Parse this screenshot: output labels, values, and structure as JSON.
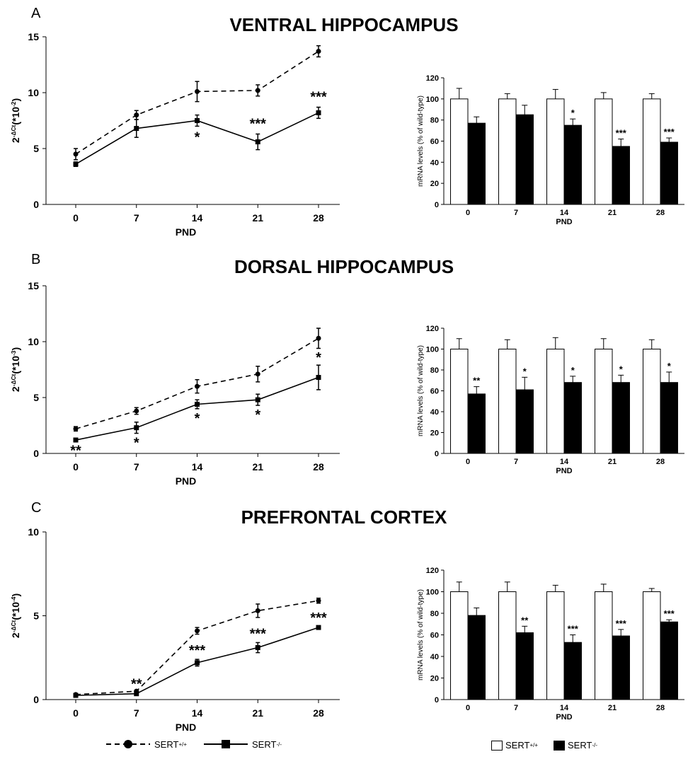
{
  "panels": [
    {
      "letter": "A",
      "title": "VENTRAL HIPPOCAMPUS"
    },
    {
      "letter": "B",
      "title": "DORSAL HIPPOCAMPUS"
    },
    {
      "letter": "C",
      "title": "PREFRONTAL CORTEX"
    }
  ],
  "legend": {
    "wt_label": "SERT",
    "wt_sup": "+/+",
    "ko_label": "SERT",
    "ko_sup": "-/-"
  },
  "chart_data": [
    {
      "type": "line",
      "panel": "A",
      "ylabel": "2-ΔCt(*10-2)",
      "xlabel": "PND",
      "x": [
        0,
        7,
        14,
        21,
        28
      ],
      "ylim": [
        0,
        15
      ],
      "yticks": [
        0,
        5,
        10,
        15
      ],
      "series": [
        {
          "name": "SERT+/+",
          "style": "dashed",
          "values": [
            4.5,
            8.0,
            10.1,
            10.2,
            13.7
          ],
          "errors": [
            0.5,
            0.4,
            0.9,
            0.5,
            0.5
          ]
        },
        {
          "name": "SERT-/-",
          "style": "solid",
          "values": [
            3.6,
            6.8,
            7.5,
            5.6,
            8.2
          ],
          "errors": [
            0.2,
            0.8,
            0.5,
            0.7,
            0.5
          ]
        }
      ],
      "annotations": [
        "",
        "",
        "*",
        "***",
        "***"
      ]
    },
    {
      "type": "bar",
      "panel": "A",
      "ylabel": "mRNA levels (% of wild-type)",
      "xlabel": "PND",
      "categories": [
        "0",
        "7",
        "14",
        "21",
        "28"
      ],
      "ylim": [
        0,
        120
      ],
      "yticks": [
        0,
        20,
        40,
        60,
        80,
        100,
        120
      ],
      "series": [
        {
          "name": "SERT+/+",
          "color": "#ffffff",
          "values": [
            100,
            100,
            100,
            100,
            100
          ],
          "errors": [
            10,
            5,
            9,
            6,
            5
          ]
        },
        {
          "name": "SERT-/-",
          "color": "#000000",
          "values": [
            77,
            85,
            75,
            55,
            59
          ],
          "errors": [
            6,
            9,
            6,
            7,
            4
          ]
        }
      ],
      "annotations": [
        "",
        "",
        "*",
        "***",
        "***"
      ]
    },
    {
      "type": "line",
      "panel": "B",
      "ylabel": "2-ΔCt(*10-3)",
      "xlabel": "PND",
      "x": [
        0,
        7,
        14,
        21,
        28
      ],
      "ylim": [
        0,
        15
      ],
      "yticks": [
        0,
        5,
        10,
        15
      ],
      "series": [
        {
          "name": "SERT+/+",
          "style": "dashed",
          "values": [
            2.2,
            3.8,
            6.0,
            7.1,
            10.3
          ],
          "errors": [
            0.2,
            0.3,
            0.6,
            0.7,
            0.9
          ]
        },
        {
          "name": "SERT-/-",
          "style": "solid",
          "values": [
            1.2,
            2.3,
            4.4,
            4.8,
            6.8
          ],
          "errors": [
            0.1,
            0.5,
            0.4,
            0.5,
            1.1
          ]
        }
      ],
      "annotations": [
        "**",
        "*",
        "*",
        "*",
        "*"
      ]
    },
    {
      "type": "bar",
      "panel": "B",
      "ylabel": "mRNA levels (% of wild-type)",
      "xlabel": "PND",
      "categories": [
        "0",
        "7",
        "14",
        "21",
        "28"
      ],
      "ylim": [
        0,
        120
      ],
      "yticks": [
        0,
        20,
        40,
        60,
        80,
        100,
        120
      ],
      "series": [
        {
          "name": "SERT+/+",
          "color": "#ffffff",
          "values": [
            100,
            100,
            100,
            100,
            100
          ],
          "errors": [
            10,
            9,
            11,
            10,
            9
          ]
        },
        {
          "name": "SERT-/-",
          "color": "#000000",
          "values": [
            57,
            61,
            68,
            68,
            68
          ],
          "errors": [
            7,
            12,
            6,
            7,
            10
          ]
        }
      ],
      "annotations": [
        "**",
        "*",
        "*",
        "*",
        "*"
      ]
    },
    {
      "type": "line",
      "panel": "C",
      "ylabel": "2-ΔCt(*10-4)",
      "xlabel": "PND",
      "x": [
        0,
        7,
        14,
        21,
        28
      ],
      "ylim": [
        0,
        10
      ],
      "yticks": [
        0,
        5,
        10
      ],
      "series": [
        {
          "name": "SERT+/+",
          "style": "dashed",
          "values": [
            0.3,
            0.5,
            4.1,
            5.3,
            5.9
          ],
          "errors": [
            0.05,
            0.05,
            0.2,
            0.4,
            0.15
          ]
        },
        {
          "name": "SERT-/-",
          "style": "solid",
          "values": [
            0.25,
            0.35,
            2.2,
            3.1,
            4.3
          ],
          "errors": [
            0.05,
            0.05,
            0.2,
            0.3,
            0.05
          ]
        }
      ],
      "annotations": [
        "",
        "**",
        "***",
        "***",
        "***"
      ]
    },
    {
      "type": "bar",
      "panel": "C",
      "ylabel": "mRNA levels (% of wild-type)",
      "xlabel": "PND",
      "categories": [
        "0",
        "7",
        "14",
        "21",
        "28"
      ],
      "ylim": [
        0,
        120
      ],
      "yticks": [
        0,
        20,
        40,
        60,
        80,
        100,
        120
      ],
      "series": [
        {
          "name": "SERT+/+",
          "color": "#ffffff",
          "values": [
            100,
            100,
            100,
            100,
            100
          ],
          "errors": [
            9,
            9,
            6,
            7,
            3
          ]
        },
        {
          "name": "SERT-/-",
          "color": "#000000",
          "values": [
            78,
            62,
            53,
            59,
            72
          ],
          "errors": [
            7,
            6,
            7,
            6,
            2
          ]
        }
      ],
      "annotations": [
        "",
        "**",
        "***",
        "***",
        "***"
      ]
    }
  ]
}
